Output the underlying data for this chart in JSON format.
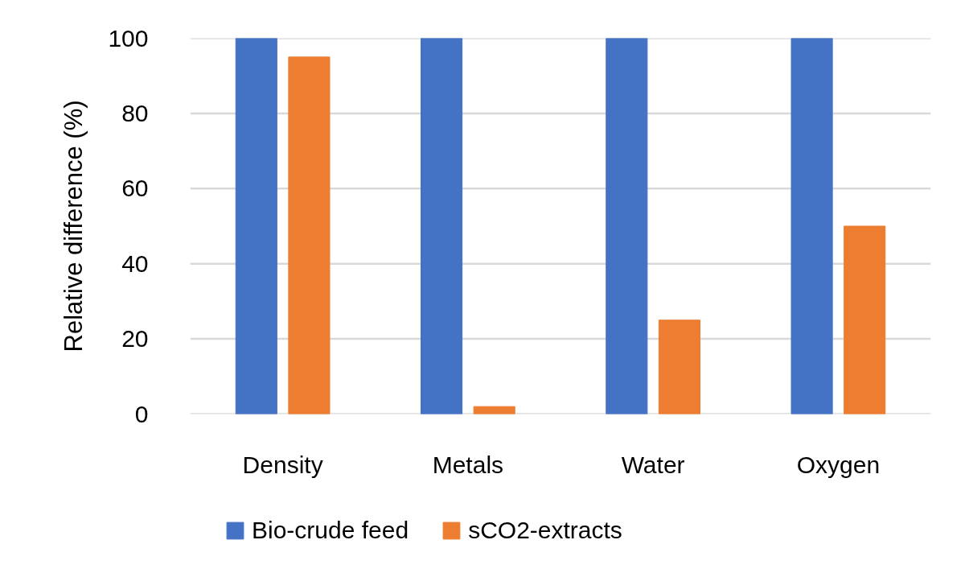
{
  "chart_data": {
    "type": "bar",
    "ylabel": "Relative difference (%)",
    "categories": [
      "Density",
      "Metals",
      "Water",
      "Oxygen"
    ],
    "series": [
      {
        "name": "Bio-crude feed",
        "color": "#4472c4",
        "values": [
          100,
          100,
          100,
          100
        ]
      },
      {
        "name": "sCO2-extracts",
        "color": "#ed7d31",
        "values": [
          95,
          2,
          25,
          50
        ]
      }
    ],
    "ylim": [
      0,
      100
    ],
    "yticks": [
      0,
      20,
      40,
      60,
      80,
      100
    ],
    "grid": "y",
    "legend": "bottom"
  }
}
